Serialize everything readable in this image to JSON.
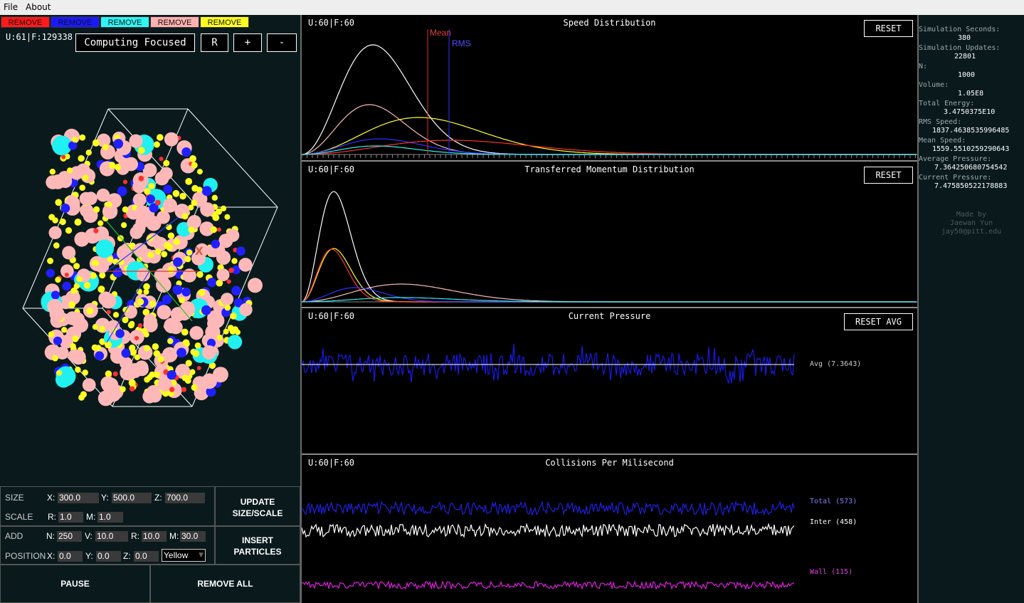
{
  "menu": {
    "file": "File",
    "about": "About"
  },
  "tabs": [
    {
      "label": "REMOVE",
      "bg": "#ff0000",
      "fg": "#000000"
    },
    {
      "label": "REMOVE",
      "bg": "#0000ff",
      "fg": "#000000"
    },
    {
      "label": "REMOVE",
      "bg": "#00ffff",
      "fg": "#000000"
    },
    {
      "label": "REMOVE",
      "bg": "#ffafaf",
      "fg": "#000000"
    },
    {
      "label": "REMOVE",
      "bg": "#ffff00",
      "fg": "#000000"
    }
  ],
  "viewport": {
    "counter": "U:61|F:129338",
    "mode_label": "Computing Focused",
    "reset_label": "R",
    "zoom_in_label": "+",
    "zoom_out_label": "-",
    "axis_label": "X"
  },
  "controls": {
    "size_label": "SIZE",
    "scale_label": "SCALE",
    "add_label": "ADD",
    "position_label": "POSITION",
    "x_label": "X:",
    "y_label": "Y:",
    "z_label": "Z:",
    "r_label": "R:",
    "m_label": "M:",
    "n_label": "N:",
    "v_label": "V:",
    "size_x": "300.0",
    "size_y": "500.0",
    "size_z": "700.0",
    "scale_r": "1.0",
    "scale_m": "1.0",
    "add_n": "250",
    "add_v": "10.0",
    "add_r": "10.0",
    "add_m": "30.0",
    "pos_x": "0.0",
    "pos_y": "0.0",
    "pos_z": "0.0",
    "color_select": "Yellow",
    "update_btn_1": "UPDATE",
    "update_btn_2": "SIZE/SCALE",
    "insert_btn_1": "INSERT",
    "insert_btn_2": "PARTICLES",
    "pause_btn": "PAUSE",
    "remove_all_btn": "REMOVE ALL"
  },
  "graphs": {
    "speed": {
      "counter": "U:60|F:60",
      "title": "Speed Distribution",
      "reset": "RESET",
      "mean_label": "Mean",
      "rms_label": "RMS"
    },
    "momentum": {
      "counter": "U:60|F:60",
      "title": "Transferred Momentum Distribution",
      "reset": "RESET"
    },
    "pressure": {
      "counter": "U:60|F:60",
      "title": "Current Pressure",
      "reset": "RESET AVG",
      "avg_label": "Avg (7.3643)"
    },
    "collisions": {
      "counter": "U:60|F:60",
      "title": "Collisions Per Milisecond",
      "total_label": "Total (573)",
      "inter_label": "Inter (458)",
      "wall_label": "Wall (115)"
    }
  },
  "stats": {
    "sim_seconds_key": "Simulation Seconds:",
    "sim_seconds": "380",
    "sim_updates_key": "Simulation Updates:",
    "sim_updates": "22801",
    "n_key": "N:",
    "n": "1000",
    "volume_key": "Volume:",
    "volume": "1.05E8",
    "energy_key": "Total Energy:",
    "energy": "3.4750375E10",
    "rms_key": "RMS Speed:",
    "rms": "1837.4638535996485",
    "mean_key": "Mean Speed:",
    "mean": "1559.5510259290643",
    "avg_p_key": "Average Pressure:",
    "avg_p": "7.364250680754542",
    "cur_p_key": "Current Pressure:",
    "cur_p": "7.475850522178883",
    "credit_1": "Made by",
    "credit_2": "Jaewan Yun",
    "credit_3": "jay50@pitt.edu"
  },
  "colors": {
    "red": "#ff3030",
    "blue": "#2020ff",
    "cyan": "#20f0f0",
    "pink": "#ffb8b8",
    "yellow": "#ffff20",
    "magenta": "#e020e0"
  }
}
